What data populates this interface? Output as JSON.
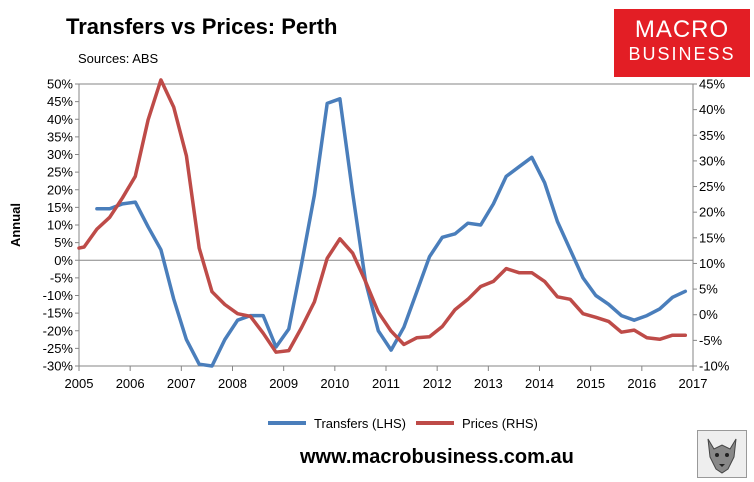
{
  "header": {
    "title": "Transfers vs Prices: Perth",
    "subtitle": "Sources: ABS"
  },
  "logo": {
    "line1": "MACRO",
    "line2": "BUSINESS",
    "color": "#e31e25"
  },
  "footer": {
    "website": "www.macrobusiness.com.au",
    "badge_icon": "wolf-face-icon"
  },
  "chart_data": {
    "type": "line",
    "title": "Transfers vs Prices: Perth",
    "ylabel": "Annual",
    "xlim": [
      2005,
      2017
    ],
    "x_ticks": [
      "2005",
      "2006",
      "2007",
      "2008",
      "2009",
      "2010",
      "2011",
      "2012",
      "2013",
      "2014",
      "2015",
      "2016",
      "2017"
    ],
    "ylim_left": [
      -30,
      50
    ],
    "ylim_right": [
      -10,
      45
    ],
    "y_left_ticks": [
      "50%",
      "45%",
      "40%",
      "35%",
      "30%",
      "25%",
      "20%",
      "15%",
      "10%",
      "5%",
      "0%",
      "-5%",
      "-10%",
      "-15%",
      "-20%",
      "-25%",
      "-30%"
    ],
    "y_right_ticks": [
      "45%",
      "40%",
      "35%",
      "30%",
      "25%",
      "20%",
      "15%",
      "10%",
      "5%",
      "0%",
      "-5%",
      "-10%"
    ],
    "legend_position": "bottom",
    "series": [
      {
        "name": "Transfers (LHS)",
        "axis": "left",
        "color": "#4a7ebb",
        "points": [
          [
            2005.35,
            14.6
          ],
          [
            2005.6,
            14.6
          ],
          [
            2005.85,
            16
          ],
          [
            2006.1,
            16.5
          ],
          [
            2006.35,
            9.5
          ],
          [
            2006.6,
            3
          ],
          [
            2006.85,
            -11
          ],
          [
            2007.1,
            -22.5
          ],
          [
            2007.35,
            -29.5
          ],
          [
            2007.6,
            -30
          ],
          [
            2007.85,
            -22.5
          ],
          [
            2008.1,
            -17
          ],
          [
            2008.35,
            -15.7
          ],
          [
            2008.6,
            -15.7
          ],
          [
            2008.85,
            -24.6
          ],
          [
            2009.1,
            -19.5
          ],
          [
            2009.35,
            -1
          ],
          [
            2009.6,
            18.5
          ],
          [
            2009.85,
            44.5
          ],
          [
            2010.1,
            45.8
          ],
          [
            2010.35,
            19
          ],
          [
            2010.6,
            -6
          ],
          [
            2010.85,
            -20
          ],
          [
            2011.1,
            -25.5
          ],
          [
            2011.35,
            -19
          ],
          [
            2011.6,
            -9
          ],
          [
            2011.85,
            1
          ],
          [
            2012.1,
            6.5
          ],
          [
            2012.35,
            7.5
          ],
          [
            2012.6,
            10.5
          ],
          [
            2012.85,
            10
          ],
          [
            2013.1,
            16
          ],
          [
            2013.35,
            23.8
          ],
          [
            2013.6,
            26.5
          ],
          [
            2013.85,
            29.2
          ],
          [
            2014.1,
            22
          ],
          [
            2014.35,
            11
          ],
          [
            2014.6,
            3
          ],
          [
            2014.85,
            -5
          ],
          [
            2015.1,
            -10
          ],
          [
            2015.35,
            -12.5
          ],
          [
            2015.6,
            -15.7
          ],
          [
            2015.85,
            -17
          ],
          [
            2016.1,
            -15.7
          ],
          [
            2016.35,
            -13.8
          ],
          [
            2016.6,
            -10.5
          ],
          [
            2016.85,
            -8.8
          ]
        ]
      },
      {
        "name": "Prices (RHS)",
        "axis": "right",
        "color": "#be4b48",
        "points": [
          [
            2005,
            13
          ],
          [
            2005.1,
            13.2
          ],
          [
            2005.35,
            16.7
          ],
          [
            2005.6,
            19
          ],
          [
            2005.85,
            22.8
          ],
          [
            2006.1,
            27
          ],
          [
            2006.35,
            38
          ],
          [
            2006.6,
            45.8
          ],
          [
            2006.85,
            40.5
          ],
          [
            2007.1,
            31
          ],
          [
            2007.35,
            13
          ],
          [
            2007.6,
            4.5
          ],
          [
            2007.85,
            2
          ],
          [
            2008.1,
            0.2
          ],
          [
            2008.35,
            -0.3
          ],
          [
            2008.6,
            -3.6
          ],
          [
            2008.85,
            -7.3
          ],
          [
            2009.1,
            -7
          ],
          [
            2009.35,
            -2.5
          ],
          [
            2009.6,
            2.5
          ],
          [
            2009.85,
            11
          ],
          [
            2010.1,
            14.8
          ],
          [
            2010.35,
            12
          ],
          [
            2010.6,
            6.5
          ],
          [
            2010.85,
            0.5
          ],
          [
            2011.1,
            -3.2
          ],
          [
            2011.35,
            -5.8
          ],
          [
            2011.6,
            -4.5
          ],
          [
            2011.85,
            -4.3
          ],
          [
            2012.1,
            -2.3
          ],
          [
            2012.35,
            1
          ],
          [
            2012.6,
            3
          ],
          [
            2012.85,
            5.5
          ],
          [
            2013.1,
            6.5
          ],
          [
            2013.35,
            9
          ],
          [
            2013.6,
            8.2
          ],
          [
            2013.85,
            8.2
          ],
          [
            2014.1,
            6.5
          ],
          [
            2014.35,
            3.5
          ],
          [
            2014.6,
            3
          ],
          [
            2014.85,
            0.2
          ],
          [
            2015.1,
            -0.5
          ],
          [
            2015.35,
            -1.3
          ],
          [
            2015.6,
            -3.4
          ],
          [
            2015.85,
            -3
          ],
          [
            2016.1,
            -4.5
          ],
          [
            2016.35,
            -4.8
          ],
          [
            2016.6,
            -4
          ],
          [
            2016.85,
            -4
          ]
        ]
      }
    ]
  }
}
